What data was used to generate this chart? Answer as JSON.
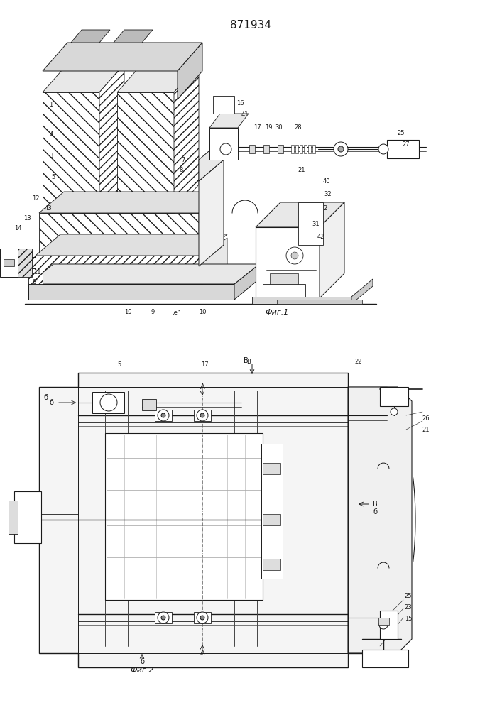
{
  "title": "871934",
  "fig1_caption": "Фиг.1",
  "fig2_caption": "Фиг.2",
  "bg": "#ffffff",
  "lc": "#1a1a1a"
}
